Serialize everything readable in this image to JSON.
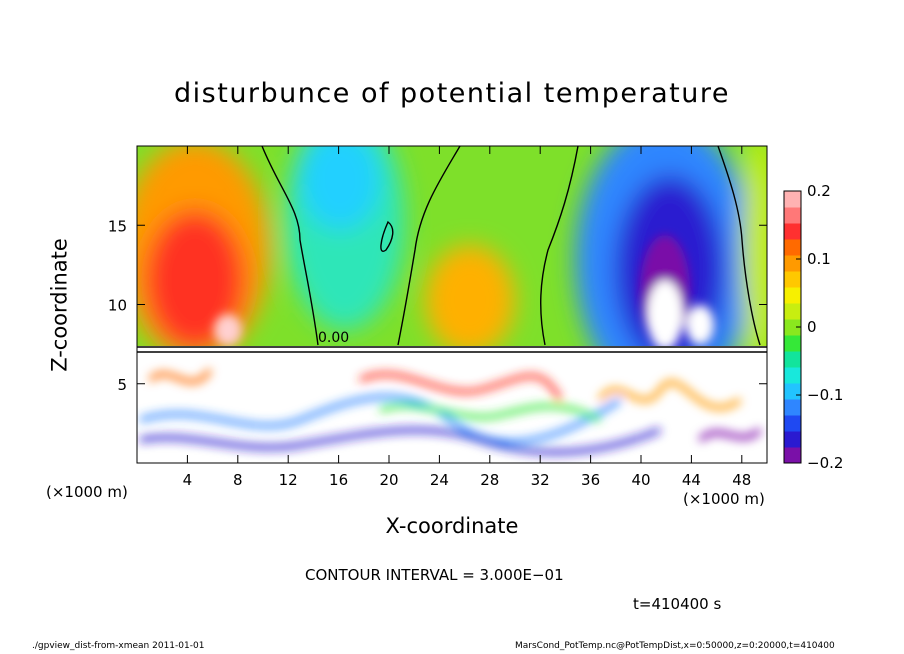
{
  "chart_data": {
    "type": "heatmap",
    "title": "disturbunce of potential temperature",
    "xlabel": "X-coordinate",
    "ylabel": "Z-coordinate",
    "x_unit": "(×1000 m)",
    "y_unit": "(×1000 m)",
    "xlim": [
      0,
      50
    ],
    "ylim": [
      0,
      20
    ],
    "x_ticks": [
      4,
      8,
      12,
      16,
      20,
      24,
      28,
      32,
      36,
      40,
      44,
      48
    ],
    "y_ticks": [
      5,
      10,
      15
    ],
    "colorbar": {
      "range": [
        -0.2,
        0.2
      ],
      "tick_values": [
        0.2,
        0.1,
        0,
        -0.1,
        -0.2
      ],
      "tick_labels": [
        "0.2",
        "0.1",
        "0",
        "−0.1",
        "−0.2"
      ],
      "colors": [
        "#7a10a8",
        "#2a1ad0",
        "#1f49f2",
        "#2f86ff",
        "#22c4ff",
        "#18e8dc",
        "#12e49c",
        "#35e838",
        "#8ae81e",
        "#c8ee10",
        "#f7f000",
        "#ffc800",
        "#ff9a00",
        "#ff6a00",
        "#ff3030",
        "#ff7878",
        "#ffb2b2"
      ]
    },
    "contour_label": "0.00",
    "features": [
      {
        "x": 6,
        "z": 12,
        "value": 0.15
      },
      {
        "x": 20,
        "z": 15,
        "value": -0.08
      },
      {
        "x": 27,
        "z": 11,
        "value": 0.1
      },
      {
        "x": 42,
        "z": 12,
        "value": -0.2
      }
    ]
  },
  "annotations": {
    "contour_interval": "CONTOUR INTERVAL = 3.000E−01",
    "time": "t=410400 s"
  },
  "footer": {
    "left": "./gpview_dist-from-xmean  2011-01-01",
    "right": "MarsCond_PotTemp.nc@PotTempDist,x=0:50000,z=0:20000,t=410400"
  }
}
